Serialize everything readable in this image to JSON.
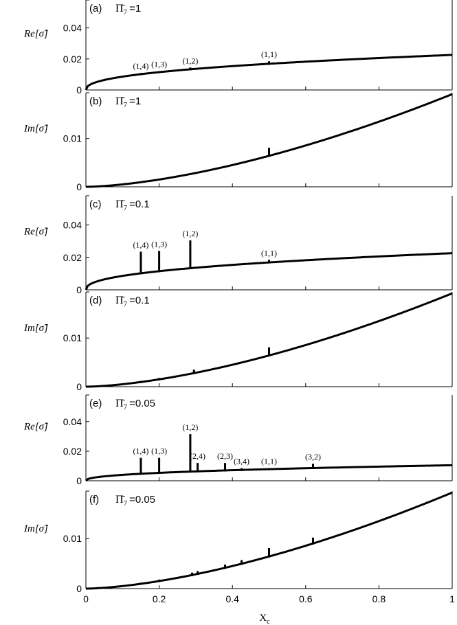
{
  "chart_data": [
    {
      "type": "line",
      "panel_label": "(a)",
      "pi_label": "Π̄",
      "pi_sub": "7",
      "pi_value": "=1",
      "ylabel": "Re[σ̃]",
      "yticks": [
        "0",
        "0.02",
        "0.04"
      ],
      "ytick_values": [
        0,
        0.02,
        0.04
      ],
      "ylim": [
        0,
        0.058
      ],
      "xlim": [
        0,
        1
      ],
      "curve": "re",
      "markers": [
        {
          "x": 0.15,
          "y": 0.011,
          "label": "(1,4)"
        },
        {
          "x": 0.2,
          "y": 0.012,
          "label": "(1,3)"
        },
        {
          "x": 0.285,
          "y": 0.0145,
          "label": "(1,2)"
        },
        {
          "x": 0.5,
          "y": 0.0185,
          "label": "(1,1)"
        }
      ]
    },
    {
      "type": "line",
      "panel_label": "(b)",
      "pi_label": "Π̄",
      "pi_sub": "7",
      "pi_value": "=1",
      "ylabel": "Im[σ̃]",
      "yticks": [
        "0",
        "0.01"
      ],
      "ytick_values": [
        0,
        0.01
      ],
      "ylim": [
        0,
        0.0195
      ],
      "xlim": [
        0,
        1
      ],
      "curve": "im",
      "markers": [
        {
          "x": 0.5,
          "y": 0.0081,
          "label": ""
        }
      ]
    },
    {
      "type": "line",
      "panel_label": "(c)",
      "pi_label": "Π̄",
      "pi_sub": "7",
      "pi_value": "=0.1",
      "ylabel": "Re[σ̃]",
      "yticks": [
        "0",
        "0.02",
        "0.04"
      ],
      "ytick_values": [
        0,
        0.02,
        0.04
      ],
      "ylim": [
        0,
        0.058
      ],
      "xlim": [
        0,
        1
      ],
      "curve": "re",
      "markers": [
        {
          "x": 0.15,
          "y": 0.0235,
          "label": "(1,4)"
        },
        {
          "x": 0.2,
          "y": 0.024,
          "label": "(1,3)"
        },
        {
          "x": 0.285,
          "y": 0.0305,
          "label": "(1,2)"
        },
        {
          "x": 0.5,
          "y": 0.0185,
          "label": "(1,1)"
        }
      ]
    },
    {
      "type": "line",
      "panel_label": "(d)",
      "pi_label": "Π̄",
      "pi_sub": "7",
      "pi_value": "=0.1",
      "ylabel": "Im[σ̃]",
      "yticks": [
        "0",
        "0.01"
      ],
      "ytick_values": [
        0,
        0.01
      ],
      "ylim": [
        0,
        0.0195
      ],
      "xlim": [
        0,
        1
      ],
      "curve": "im",
      "markers": [
        {
          "x": 0.15,
          "y": 0.0012,
          "label": ""
        },
        {
          "x": 0.2,
          "y": 0.0018,
          "label": ""
        },
        {
          "x": 0.295,
          "y": 0.0035,
          "label": ""
        },
        {
          "x": 0.5,
          "y": 0.0081,
          "label": ""
        }
      ]
    },
    {
      "type": "line",
      "panel_label": "(e)",
      "pi_label": "Π̄",
      "pi_sub": "7",
      "pi_value": "=0.05",
      "ylabel": "Re[σ̃]",
      "yticks": [
        "0",
        "0.02",
        "0.04"
      ],
      "ytick_values": [
        0,
        0.02,
        0.04
      ],
      "ylim": [
        0,
        0.058
      ],
      "xlim": [
        0,
        1
      ],
      "curve": "re_low",
      "markers": [
        {
          "x": 0.15,
          "y": 0.0155,
          "label": "(1,4)"
        },
        {
          "x": 0.2,
          "y": 0.0155,
          "label": "(1,3)"
        },
        {
          "x": 0.285,
          "y": 0.0315,
          "label": "(1,2)"
        },
        {
          "x": 0.305,
          "y": 0.012,
          "label": "(2,4)"
        },
        {
          "x": 0.38,
          "y": 0.012,
          "label": "(2,3)"
        },
        {
          "x": 0.425,
          "y": 0.0085,
          "label": "(3,4)"
        },
        {
          "x": 0.5,
          "y": 0.0085,
          "label": "(1,1)"
        },
        {
          "x": 0.62,
          "y": 0.0115,
          "label": "(3,2)"
        }
      ]
    },
    {
      "type": "line",
      "panel_label": "(f)",
      "pi_label": "Π̄",
      "pi_sub": "7",
      "pi_value": "=0.05",
      "ylabel": "Im[σ̃]",
      "yticks": [
        "0",
        "0.01"
      ],
      "ytick_values": [
        0,
        0.01
      ],
      "ylim": [
        0,
        0.0195
      ],
      "xlim": [
        0,
        1
      ],
      "curve": "im",
      "markers": [
        {
          "x": 0.15,
          "y": 0.0012,
          "label": ""
        },
        {
          "x": 0.2,
          "y": 0.0018,
          "label": ""
        },
        {
          "x": 0.29,
          "y": 0.0032,
          "label": ""
        },
        {
          "x": 0.305,
          "y": 0.0035,
          "label": ""
        },
        {
          "x": 0.38,
          "y": 0.0048,
          "label": ""
        },
        {
          "x": 0.425,
          "y": 0.0057,
          "label": ""
        },
        {
          "x": 0.5,
          "y": 0.0081,
          "label": ""
        },
        {
          "x": 0.62,
          "y": 0.0102,
          "label": ""
        }
      ]
    }
  ],
  "xaxis": {
    "label": "X",
    "label_sub": "c",
    "ticks": [
      "0",
      "0.2",
      "0.4",
      "0.6",
      "0.8",
      "1"
    ],
    "tick_values": [
      0,
      0.2,
      0.4,
      0.6,
      0.8,
      1
    ]
  }
}
